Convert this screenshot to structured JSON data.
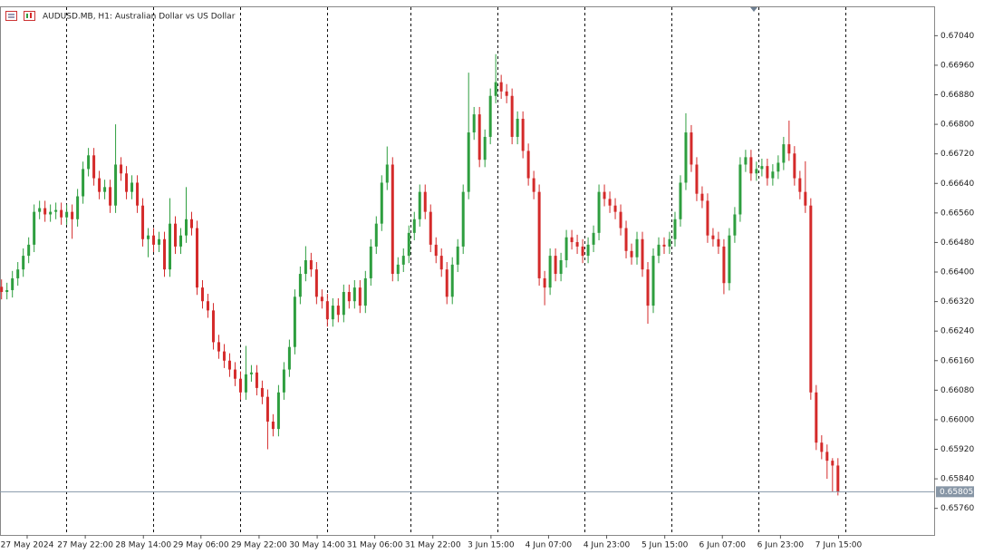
{
  "chart_data": {
    "type": "candlestick",
    "title": "AUDUSD.MB, H1:  Australian Dollar vs US Dollar",
    "up_color": "#2e9e3f",
    "down_color": "#d42a2a",
    "grid": false,
    "xlim": [
      -0.2,
      171.8
    ],
    "xticks": [
      {
        "value": 4.8,
        "label": "27 May 2024"
      },
      {
        "value": 15.5,
        "label": "27 May 22:00"
      },
      {
        "value": 26.2,
        "label": "28 May 14:00"
      },
      {
        "value": 36.8,
        "label": "29 May 06:00"
      },
      {
        "value": 47.5,
        "label": "29 May 22:00"
      },
      {
        "value": 58.2,
        "label": "30 May 14:00"
      },
      {
        "value": 68.8,
        "label": "31 May 06:00"
      },
      {
        "value": 79.5,
        "label": "31 May 22:00"
      },
      {
        "value": 90.2,
        "label": "3 Jun 15:00"
      },
      {
        "value": 100.8,
        "label": "4 Jun 07:00"
      },
      {
        "value": 111.5,
        "label": "4 Jun 23:00"
      },
      {
        "value": 122.2,
        "label": "5 Jun 15:00"
      },
      {
        "value": 132.8,
        "label": "6 Jun 07:00"
      },
      {
        "value": 143.5,
        "label": "6 Jun 23:00"
      },
      {
        "value": 154.2,
        "label": "7 Jun 15:00"
      }
    ],
    "ylim": [
      0.65688,
      0.67117
    ],
    "yticks": [
      {
        "value": 0.6576,
        "label": "0.65760"
      },
      {
        "value": 0.6584,
        "label": "0.65840"
      },
      {
        "value": 0.6592,
        "label": "0.65920"
      },
      {
        "value": 0.66,
        "label": "0.66000"
      },
      {
        "value": 0.6608,
        "label": "0.66080"
      },
      {
        "value": 0.6616,
        "label": "0.66160"
      },
      {
        "value": 0.6624,
        "label": "0.66240"
      },
      {
        "value": 0.6632,
        "label": "0.66320"
      },
      {
        "value": 0.664,
        "label": "0.66400"
      },
      {
        "value": 0.6648,
        "label": "0.66480"
      },
      {
        "value": 0.6656,
        "label": "0.66560"
      },
      {
        "value": 0.6664,
        "label": "0.66640"
      },
      {
        "value": 0.6672,
        "label": "0.66720"
      },
      {
        "value": 0.668,
        "label": "0.66800"
      },
      {
        "value": 0.6688,
        "label": "0.66880"
      },
      {
        "value": 0.6696,
        "label": "0.66960"
      },
      {
        "value": 0.6704,
        "label": "0.67040"
      }
    ],
    "current_price": 0.65805,
    "open": [
      0.6636,
      0.66346,
      0.66351,
      0.66383,
      0.66407,
      0.66444,
      0.66474,
      0.66563,
      0.66573,
      0.66556,
      0.66563,
      0.66568,
      0.66548,
      0.66563,
      0.66543,
      0.66605,
      0.66679,
      0.66716,
      0.66654,
      0.66617,
      0.6663,
      0.6658,
      0.66691,
      0.66667,
      0.66617,
      0.66642,
      0.6658,
      0.66489,
      0.66499,
      0.66474,
      0.66489,
      0.66407,
      0.66531,
      0.66469,
      0.66499,
      0.66543,
      0.66519,
      0.66358,
      0.66321,
      0.66296,
      0.6621,
      0.66185,
      0.6616,
      0.66136,
      0.66111,
      0.66074,
      0.66123,
      0.66128,
      0.66086,
      0.66062,
      0.65995,
      0.65975,
      0.66074,
      0.66136,
      0.66197,
      0.66333,
      0.66395,
      0.66432,
      0.66407,
      0.66333,
      0.66321,
      0.66272,
      0.66309,
      0.66284,
      0.66346,
      0.66321,
      0.66358,
      0.66309,
      0.66383,
      0.66469,
      0.66531,
      0.66642,
      0.66691,
      0.66395,
      0.6642,
      0.66444,
      0.66506,
      0.66543,
      0.66617,
      0.66563,
      0.66474,
      0.66444,
      0.66407,
      0.66333,
      0.6642,
      0.66469,
      0.66617,
      0.66778,
      0.66827,
      0.66704,
      0.66766,
      0.66877,
      0.66914,
      0.66889,
      0.66877,
      0.66766,
      0.66815,
      0.66728,
      0.66654,
      0.66617,
      0.66383,
      0.66358,
      0.66444,
      0.66395,
      0.66432,
      0.66494,
      0.66481,
      0.66469,
      0.66444,
      0.66474,
      0.66506,
      0.66617,
      0.66598,
      0.6658,
      0.66563,
      0.66519,
      0.66457,
      0.6644,
      0.66489,
      0.66407,
      0.66309,
      0.66444,
      0.66474,
      0.66469,
      0.66489,
      0.66543,
      0.66642,
      0.66778,
      0.66691,
      0.66612,
      0.66593,
      0.66499,
      0.66489,
      0.66469,
      0.6637,
      0.66499,
      0.66556,
      0.66691,
      0.66711,
      0.66667,
      0.66679,
      0.66687,
      0.66654,
      0.66672,
      0.66696,
      0.66746,
      0.66721,
      0.66654,
      0.66617,
      0.6658,
      0.66074,
      0.65938,
      0.65913,
      0.65889,
      0.65876
    ],
    "high": [
      0.6638,
      0.66371,
      0.66403,
      0.66427,
      0.66464,
      0.66494,
      0.66583,
      0.66593,
      0.66593,
      0.66583,
      0.66588,
      0.66588,
      0.66583,
      0.66583,
      0.66625,
      0.66699,
      0.66736,
      0.66736,
      0.66674,
      0.6665,
      0.6665,
      0.668,
      0.66711,
      0.66687,
      0.66662,
      0.66662,
      0.666,
      0.66519,
      0.66519,
      0.66509,
      0.66509,
      0.666,
      0.66551,
      0.66519,
      0.6663,
      0.66563,
      0.66539,
      0.66378,
      0.66341,
      0.66316,
      0.6623,
      0.66205,
      0.6618,
      0.66156,
      0.66131,
      0.662,
      0.66148,
      0.66148,
      0.66106,
      0.66082,
      0.66015,
      0.66094,
      0.66156,
      0.66217,
      0.66353,
      0.66415,
      0.6647,
      0.66452,
      0.66427,
      0.66353,
      0.66341,
      0.66329,
      0.66329,
      0.66366,
      0.66366,
      0.66378,
      0.66378,
      0.66403,
      0.66489,
      0.66551,
      0.66662,
      0.6674,
      0.66711,
      0.6644,
      0.66464,
      0.66526,
      0.66563,
      0.66637,
      0.66637,
      0.66583,
      0.66494,
      0.66464,
      0.66427,
      0.6644,
      0.66489,
      0.66637,
      0.6694,
      0.66847,
      0.66847,
      0.66786,
      0.66897,
      0.6699,
      0.66934,
      0.66909,
      0.66897,
      0.66835,
      0.66835,
      0.66748,
      0.66674,
      0.66637,
      0.66403,
      0.66464,
      0.66464,
      0.66452,
      0.66514,
      0.66514,
      0.66501,
      0.66489,
      0.66494,
      0.66526,
      0.66637,
      0.66637,
      0.66618,
      0.666,
      0.66583,
      0.66539,
      0.66477,
      0.66509,
      0.66509,
      0.66427,
      0.66464,
      0.66494,
      0.66494,
      0.66509,
      0.66563,
      0.66662,
      0.6683,
      0.66798,
      0.66711,
      0.66632,
      0.66613,
      0.66519,
      0.66509,
      0.66489,
      0.66519,
      0.66576,
      0.66711,
      0.66731,
      0.66731,
      0.66699,
      0.66707,
      0.66707,
      0.66692,
      0.66716,
      0.66766,
      0.6681,
      0.66741,
      0.66674,
      0.667,
      0.666,
      0.66094,
      0.65958,
      0.65933,
      0.65896,
      0.65896
    ],
    "low": [
      0.66326,
      0.66326,
      0.66331,
      0.66363,
      0.66387,
      0.66424,
      0.66454,
      0.66543,
      0.66536,
      0.66536,
      0.66543,
      0.66528,
      0.66528,
      0.6649,
      0.66523,
      0.66585,
      0.66659,
      0.66634,
      0.66597,
      0.66597,
      0.6656,
      0.6656,
      0.66647,
      0.66597,
      0.66597,
      0.6656,
      0.66469,
      0.6644,
      0.66454,
      0.66454,
      0.66387,
      0.66387,
      0.66449,
      0.66449,
      0.66479,
      0.66499,
      0.66338,
      0.66301,
      0.66276,
      0.6619,
      0.66165,
      0.6614,
      0.66116,
      0.66091,
      0.66054,
      0.66054,
      0.66103,
      0.66066,
      0.66042,
      0.6592,
      0.65955,
      0.65955,
      0.66054,
      0.66116,
      0.66177,
      0.66313,
      0.66375,
      0.66387,
      0.66313,
      0.66301,
      0.66252,
      0.66252,
      0.66264,
      0.66264,
      0.66301,
      0.66301,
      0.66289,
      0.66289,
      0.66363,
      0.66449,
      0.66511,
      0.66622,
      0.66375,
      0.66375,
      0.664,
      0.66424,
      0.66486,
      0.66523,
      0.66543,
      0.66454,
      0.66424,
      0.66387,
      0.66313,
      0.66313,
      0.664,
      0.66449,
      0.66597,
      0.66758,
      0.66684,
      0.66684,
      0.66746,
      0.66857,
      0.66869,
      0.66857,
      0.66746,
      0.66746,
      0.66708,
      0.66634,
      0.66597,
      0.66363,
      0.6631,
      0.66338,
      0.66375,
      0.66375,
      0.66412,
      0.66461,
      0.66449,
      0.66424,
      0.66424,
      0.66454,
      0.66486,
      0.66578,
      0.6656,
      0.66543,
      0.66499,
      0.66437,
      0.6642,
      0.6642,
      0.66387,
      0.6626,
      0.66289,
      0.66424,
      0.66449,
      0.66449,
      0.66469,
      0.66523,
      0.66622,
      0.66671,
      0.66592,
      0.66573,
      0.66479,
      0.66469,
      0.66449,
      0.6634,
      0.6635,
      0.66479,
      0.66536,
      0.66671,
      0.66647,
      0.66647,
      0.66659,
      0.66634,
      0.66634,
      0.66652,
      0.66676,
      0.66701,
      0.66634,
      0.66597,
      0.6656,
      0.66054,
      0.65918,
      0.65893,
      0.6584,
      0.65805,
      0.65795
    ],
    "close": [
      0.66346,
      0.66351,
      0.66383,
      0.66407,
      0.66444,
      0.66474,
      0.66563,
      0.66573,
      0.66556,
      0.66563,
      0.66568,
      0.66548,
      0.66563,
      0.66543,
      0.66605,
      0.66679,
      0.66716,
      0.66654,
      0.66617,
      0.6663,
      0.6658,
      0.66691,
      0.66667,
      0.66617,
      0.66642,
      0.6658,
      0.66489,
      0.66499,
      0.66474,
      0.66489,
      0.66407,
      0.66531,
      0.66469,
      0.66499,
      0.66543,
      0.66519,
      0.66358,
      0.66321,
      0.66296,
      0.6621,
      0.66185,
      0.6616,
      0.66136,
      0.66111,
      0.66074,
      0.66123,
      0.66128,
      0.66086,
      0.66062,
      0.65995,
      0.65975,
      0.66074,
      0.66136,
      0.66197,
      0.66333,
      0.66395,
      0.66432,
      0.66407,
      0.66333,
      0.66321,
      0.66272,
      0.66309,
      0.66284,
      0.66346,
      0.66321,
      0.66358,
      0.66309,
      0.66383,
      0.66469,
      0.66531,
      0.66642,
      0.66691,
      0.66395,
      0.6642,
      0.66444,
      0.66506,
      0.66543,
      0.66617,
      0.66563,
      0.66474,
      0.66444,
      0.66407,
      0.66333,
      0.6642,
      0.66469,
      0.66617,
      0.66778,
      0.66827,
      0.66704,
      0.66766,
      0.66877,
      0.66914,
      0.66889,
      0.66877,
      0.66766,
      0.66815,
      0.66728,
      0.66654,
      0.66617,
      0.66383,
      0.66358,
      0.66444,
      0.66395,
      0.66432,
      0.66494,
      0.66481,
      0.66469,
      0.66444,
      0.66474,
      0.66506,
      0.66617,
      0.66598,
      0.6658,
      0.66563,
      0.66519,
      0.66457,
      0.6644,
      0.66489,
      0.66407,
      0.66309,
      0.66444,
      0.66474,
      0.66469,
      0.66489,
      0.66543,
      0.66642,
      0.66778,
      0.66691,
      0.66612,
      0.66593,
      0.66499,
      0.66489,
      0.66469,
      0.6637,
      0.66499,
      0.66556,
      0.66691,
      0.66711,
      0.66667,
      0.66679,
      0.66687,
      0.66654,
      0.66672,
      0.66696,
      0.66746,
      0.66721,
      0.66654,
      0.66617,
      0.6658,
      0.66074,
      0.65938,
      0.65913,
      0.65889,
      0.65876,
      0.65805
    ]
  }
}
